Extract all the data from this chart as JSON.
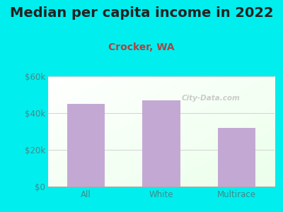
{
  "title": "Median per capita income in 2022",
  "subtitle": "Crocker, WA",
  "categories": [
    "All",
    "White",
    "Multirace"
  ],
  "values": [
    45000,
    47000,
    32000
  ],
  "bar_color": "#c4a8d4",
  "title_color": "#222222",
  "subtitle_color": "#aa4444",
  "ytick_color": "#448888",
  "xtick_color": "#448888",
  "background_color": "#00EEEE",
  "ylim": [
    0,
    60000
  ],
  "yticks": [
    0,
    20000,
    40000,
    60000
  ],
  "ytick_labels": [
    "$0",
    "$20k",
    "$40k",
    "$60k"
  ],
  "watermark": "City-Data.com",
  "title_fontsize": 14,
  "subtitle_fontsize": 10,
  "tick_fontsize": 8.5,
  "bar_width": 0.5
}
